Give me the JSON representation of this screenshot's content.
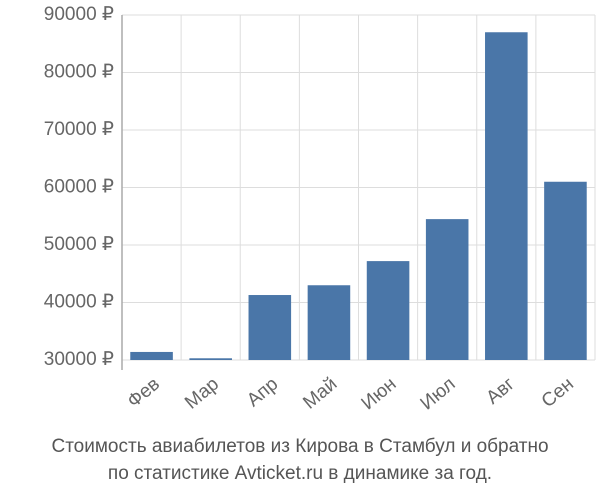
{
  "chart_data": {
    "type": "bar",
    "title": [
      "Стоимость авиабилетов из Кирова в Стамбул и обратно",
      "по статистике Avticket.ru в динамике за год."
    ],
    "categories": [
      "Фев",
      "Мар",
      "Апр",
      "Май",
      "Июн",
      "Июл",
      "Авг",
      "Сен"
    ],
    "values": [
      31400,
      30300,
      41300,
      43000,
      47200,
      54500,
      87000,
      61000
    ],
    "color": "#4a76a8",
    "ylim": [
      30000,
      90000
    ],
    "yticks": [
      {
        "value": 30000,
        "label": "30000 ₽"
      },
      {
        "value": 40000,
        "label": "40000 ₽"
      },
      {
        "value": 50000,
        "label": "50000 ₽"
      },
      {
        "value": 60000,
        "label": "60000 ₽"
      },
      {
        "value": 70000,
        "label": "70000 ₽"
      },
      {
        "value": 80000,
        "label": "80000 ₽"
      },
      {
        "value": 90000,
        "label": "90000 ₽"
      }
    ],
    "grid": true
  }
}
